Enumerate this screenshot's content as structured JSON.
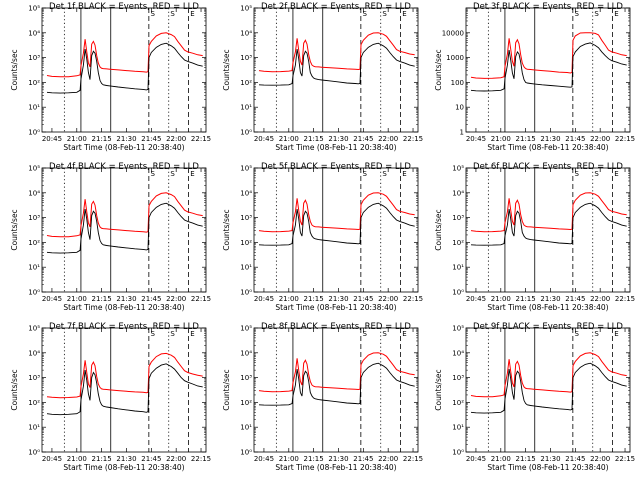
{
  "chart_data": {
    "type": "line",
    "time_labels": [
      "20:45",
      "21:00",
      "21:15",
      "21:30",
      "21:45",
      "22:00",
      "22:15"
    ],
    "time_minutes": [
      0,
      15,
      30,
      45,
      60,
      75,
      90
    ],
    "x_range_minutes": [
      -6,
      93
    ],
    "xlabel": "Start Time (08-Feb-11 20:38:40)",
    "ylabel": "Counts/sec",
    "y_scale": "log",
    "ylim": [
      1,
      100000
    ],
    "ytick_values": [
      1,
      10,
      100,
      1000,
      10000,
      100000
    ],
    "ytick_labels_exp": [
      "10⁰",
      "10¹",
      "10²",
      "10³",
      "10⁴",
      "10⁵"
    ],
    "ytick_labels_plain": [
      "1",
      "10",
      "100",
      "1000",
      "10000"
    ],
    "vlines": [
      {
        "x": 7.5,
        "style": "dotted"
      },
      {
        "x": 17.5,
        "style": "solid"
      },
      {
        "x": 35.5,
        "style": "solid"
      },
      {
        "x": 58.5,
        "style": "dashed"
      },
      {
        "x": 70.5,
        "style": "dotted"
      },
      {
        "x": 82.5,
        "style": "dashed"
      }
    ],
    "marker_labels": [
      {
        "x": 59.5,
        "label": "S"
      },
      {
        "x": 71.5,
        "label": "S"
      },
      {
        "x": 83.5,
        "label": "E"
      }
    ],
    "colors": {
      "events": "#000000",
      "lld": "#ff0000"
    },
    "series_points_x": [
      -3,
      0,
      5,
      10,
      15,
      17,
      17.5,
      19,
      20,
      21,
      22,
      23,
      24,
      25,
      26,
      27,
      28,
      29,
      30,
      31,
      33,
      35,
      40,
      45,
      50,
      55,
      57,
      58,
      58.6,
      60,
      63,
      66,
      69,
      72,
      74,
      76,
      78,
      80,
      82,
      85,
      88,
      91
    ],
    "panels": [
      {
        "title": "Det 1f BLACK = Events, RED = LLD",
        "ytick_style": "exp",
        "events": [
          40,
          38,
          37,
          38,
          40,
          48,
          130,
          500,
          2200,
          900,
          250,
          130,
          1200,
          1800,
          1500,
          700,
          250,
          120,
          90,
          80,
          75,
          72,
          65,
          60,
          55,
          52,
          50,
          52,
          1000,
          1600,
          2600,
          3400,
          3800,
          3000,
          2400,
          1600,
          1100,
          800,
          700,
          600,
          500,
          450
        ],
        "lld": [
          190,
          175,
          168,
          170,
          185,
          200,
          450,
          1500,
          5500,
          1800,
          600,
          420,
          3500,
          4500,
          3200,
          1200,
          600,
          420,
          370,
          360,
          350,
          340,
          320,
          300,
          280,
          270,
          260,
          270,
          3000,
          4500,
          7500,
          9500,
          10000,
          8500,
          7000,
          4500,
          3000,
          2000,
          1700,
          1500,
          1300,
          1200
        ]
      },
      {
        "title": "Det 2f BLACK = Events, RED = LLD",
        "ytick_style": "exp",
        "events": [
          80,
          78,
          77,
          78,
          80,
          90,
          180,
          500,
          2200,
          900,
          250,
          180,
          1200,
          1800,
          1500,
          700,
          250,
          180,
          150,
          140,
          130,
          125,
          115,
          105,
          95,
          90,
          88,
          90,
          1000,
          1600,
          2600,
          3400,
          3800,
          3000,
          2400,
          1600,
          1100,
          800,
          700,
          600,
          500,
          450
        ],
        "lld": [
          300,
          280,
          270,
          272,
          285,
          300,
          600,
          1700,
          6000,
          2000,
          700,
          500,
          3800,
          5000,
          3500,
          1300,
          700,
          500,
          450,
          430,
          420,
          410,
          390,
          370,
          350,
          340,
          330,
          340,
          3300,
          5000,
          8000,
          9800,
          10000,
          8800,
          7200,
          4800,
          3200,
          2100,
          1800,
          1600,
          1400,
          1300
        ]
      },
      {
        "title": "Det 3f BLACK = Events, RED = LLD",
        "ytick_style": "plain",
        "events": [
          48,
          46,
          45,
          46,
          48,
          55,
          140,
          500,
          2000,
          800,
          240,
          140,
          1100,
          1700,
          1400,
          650,
          240,
          130,
          100,
          95,
          90,
          87,
          80,
          75,
          70,
          66,
          64,
          66,
          1100,
          1700,
          2800,
          3500,
          3900,
          3100,
          2500,
          1700,
          1200,
          900,
          750,
          650,
          550,
          500
        ],
        "lld": [
          160,
          150,
          145,
          148,
          155,
          170,
          420,
          1400,
          6000,
          2200,
          700,
          450,
          4000,
          5200,
          3600,
          1300,
          600,
          420,
          360,
          340,
          330,
          320,
          300,
          280,
          260,
          250,
          240,
          250,
          5000,
          7500,
          9800,
          10000,
          10000,
          9500,
          8200,
          5000,
          3200,
          2000,
          1700,
          1500,
          1300,
          1200
        ]
      },
      {
        "title": "Det 4f BLACK = Events, RED = LLD",
        "ytick_style": "exp",
        "events": [
          40,
          38,
          37,
          38,
          40,
          48,
          130,
          500,
          2200,
          900,
          250,
          130,
          1200,
          1800,
          1500,
          700,
          250,
          120,
          90,
          80,
          75,
          72,
          65,
          60,
          55,
          52,
          50,
          52,
          1000,
          1600,
          2600,
          3400,
          3800,
          3000,
          2400,
          1600,
          1100,
          800,
          700,
          600,
          500,
          450
        ],
        "lld": [
          190,
          175,
          168,
          170,
          185,
          200,
          450,
          1500,
          5500,
          1800,
          600,
          420,
          3500,
          4500,
          3200,
          1200,
          600,
          420,
          370,
          360,
          350,
          340,
          320,
          300,
          280,
          270,
          260,
          270,
          3000,
          4500,
          7500,
          9500,
          10000,
          8500,
          7000,
          4500,
          3000,
          2000,
          1700,
          1500,
          1300,
          1200
        ]
      },
      {
        "title": "Det 5f BLACK = Events, RED = LLD",
        "ytick_style": "exp",
        "events": [
          80,
          78,
          77,
          78,
          80,
          90,
          180,
          500,
          2200,
          900,
          250,
          180,
          1200,
          1800,
          1500,
          700,
          250,
          180,
          150,
          140,
          130,
          125,
          115,
          105,
          95,
          90,
          88,
          90,
          1000,
          1600,
          2600,
          3400,
          3800,
          3000,
          2400,
          1600,
          1100,
          800,
          700,
          600,
          500,
          450
        ],
        "lld": [
          300,
          280,
          270,
          272,
          285,
          300,
          600,
          1700,
          6000,
          2000,
          700,
          500,
          3800,
          5000,
          3500,
          1300,
          700,
          500,
          450,
          430,
          420,
          410,
          390,
          370,
          350,
          340,
          330,
          340,
          3300,
          5000,
          8000,
          9800,
          10000,
          8800,
          7200,
          4800,
          3200,
          2100,
          1800,
          1600,
          1400,
          1300
        ]
      },
      {
        "title": "Det 6f BLACK = Events, RED = LLD",
        "ytick_style": "exp",
        "events": [
          80,
          78,
          77,
          78,
          80,
          90,
          180,
          500,
          2200,
          900,
          250,
          180,
          1200,
          1800,
          1500,
          700,
          250,
          180,
          150,
          140,
          130,
          125,
          115,
          105,
          95,
          90,
          88,
          90,
          1000,
          1600,
          2600,
          3400,
          3800,
          3000,
          2400,
          1600,
          1100,
          800,
          700,
          600,
          500,
          450
        ],
        "lld": [
          300,
          280,
          270,
          272,
          285,
          300,
          600,
          1700,
          6000,
          2000,
          700,
          500,
          3800,
          5000,
          3500,
          1300,
          700,
          500,
          450,
          430,
          420,
          410,
          390,
          370,
          350,
          340,
          330,
          340,
          3300,
          5000,
          8000,
          9800,
          10000,
          8800,
          7200,
          4800,
          3200,
          2100,
          1800,
          1600,
          1400,
          1300
        ]
      },
      {
        "title": "Det 7f BLACK = Events, RED = LLD",
        "ytick_style": "exp",
        "events": [
          35,
          33,
          32,
          33,
          35,
          42,
          120,
          450,
          2000,
          800,
          220,
          120,
          1000,
          1600,
          1300,
          600,
          220,
          110,
          80,
          70,
          65,
          62,
          55,
          50,
          45,
          42,
          40,
          42,
          900,
          1500,
          2400,
          3200,
          3600,
          2800,
          2200,
          1500,
          1000,
          750,
          650,
          550,
          460,
          420
        ],
        "lld": [
          170,
          160,
          155,
          158,
          165,
          180,
          420,
          1400,
          5000,
          1700,
          550,
          400,
          3200,
          4200,
          3000,
          1100,
          550,
          400,
          350,
          340,
          330,
          320,
          300,
          280,
          265,
          255,
          245,
          255,
          2800,
          4200,
          7000,
          9000,
          9500,
          8000,
          6500,
          4200,
          2800,
          1900,
          1600,
          1400,
          1250,
          1150
        ]
      },
      {
        "title": "Det 8f BLACK = Events, RED = LLD",
        "ytick_style": "exp",
        "events": [
          80,
          78,
          77,
          78,
          80,
          90,
          180,
          500,
          2200,
          900,
          250,
          180,
          1200,
          1800,
          1500,
          700,
          250,
          180,
          150,
          140,
          130,
          125,
          115,
          105,
          95,
          90,
          88,
          90,
          1000,
          1600,
          2600,
          3400,
          3800,
          3000,
          2400,
          1600,
          1100,
          800,
          700,
          600,
          500,
          450
        ],
        "lld": [
          300,
          280,
          270,
          272,
          285,
          300,
          600,
          1700,
          6000,
          2000,
          700,
          500,
          3800,
          5000,
          3500,
          1300,
          700,
          500,
          450,
          430,
          420,
          410,
          390,
          370,
          350,
          340,
          330,
          340,
          3300,
          5000,
          8000,
          9800,
          10000,
          8800,
          7200,
          4800,
          3200,
          2100,
          1800,
          1600,
          1400,
          1300
        ]
      },
      {
        "title": "Det 9f BLACK = Events, RED = LLD",
        "ytick_style": "exp",
        "events": [
          40,
          38,
          37,
          38,
          40,
          48,
          130,
          500,
          2200,
          900,
          250,
          130,
          1200,
          1800,
          1500,
          700,
          250,
          120,
          90,
          80,
          75,
          72,
          65,
          60,
          55,
          52,
          50,
          52,
          1000,
          1600,
          2600,
          3400,
          3800,
          3000,
          2400,
          1600,
          1100,
          800,
          700,
          600,
          500,
          450
        ],
        "lld": [
          190,
          175,
          168,
          170,
          185,
          200,
          450,
          1500,
          5500,
          1800,
          600,
          420,
          3500,
          4500,
          3200,
          1200,
          600,
          420,
          370,
          360,
          350,
          340,
          320,
          300,
          280,
          270,
          260,
          270,
          3000,
          4500,
          7500,
          9500,
          10000,
          8500,
          7000,
          4500,
          3000,
          2000,
          1700,
          1500,
          1300,
          1200
        ]
      }
    ]
  }
}
